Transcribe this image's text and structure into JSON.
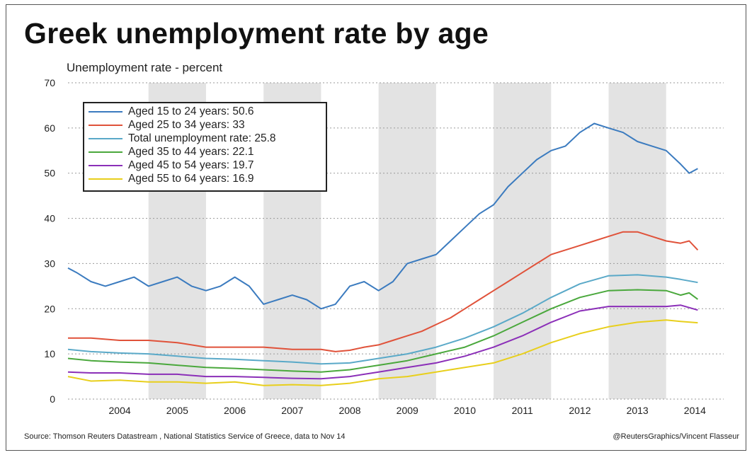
{
  "title": "Greek unemployment rate by age",
  "y_axis_label": "Unemployment rate - percent",
  "footer": {
    "source": "Source: Thomson Reuters Datastream , National Statistics Service of Greece, data to Nov 14",
    "credit": "@ReutersGraphics/Vincent Flasseur"
  },
  "legend": [
    {
      "label": "Aged 15 to 24 years: 50.6",
      "color": "#3b7bbf"
    },
    {
      "label": "Aged 25 to 34 years: 33",
      "color": "#e0523a"
    },
    {
      "label": "Total unemployment rate: 25.8",
      "color": "#5aa9c8"
    },
    {
      "label": "Aged 35 to 44 years: 22.1",
      "color": "#4aa83c"
    },
    {
      "label": "Aged 45 to 54 years: 19.7",
      "color": "#8b2fb8"
    },
    {
      "label": "Aged 55 to 64 years: 16.9",
      "color": "#e8cf1c"
    }
  ],
  "chart_data": {
    "type": "line",
    "title": "Greek unemployment rate by age",
    "ylabel": "Unemployment rate - percent",
    "xlabel": "",
    "xlim": [
      2003.6,
      2015.0
    ],
    "ylim": [
      0,
      70
    ],
    "yticks": [
      "0",
      "10",
      "20",
      "30",
      "40",
      "50",
      "60",
      "70"
    ],
    "xticks": [
      "2004",
      "2005",
      "2006",
      "2007",
      "2008",
      "2009",
      "2010",
      "2011",
      "2012",
      "2013",
      "2014"
    ],
    "grid": "horizontal dotted",
    "background_bands": "alternating year shading",
    "legend_position": "top-left",
    "series": [
      {
        "name": "Aged 15 to 24 years: 50.6",
        "color": "#3b7bbf",
        "x": [
          2003.6,
          2003.75,
          2004.0,
          2004.25,
          2004.5,
          2004.75,
          2005.0,
          2005.25,
          2005.5,
          2005.75,
          2006.0,
          2006.25,
          2006.5,
          2006.75,
          2007.0,
          2007.25,
          2007.5,
          2007.75,
          2008.0,
          2008.25,
          2008.5,
          2008.75,
          2009.0,
          2009.25,
          2009.5,
          2009.75,
          2010.0,
          2010.25,
          2010.5,
          2010.75,
          2011.0,
          2011.25,
          2011.5,
          2011.75,
          2012.0,
          2012.25,
          2012.5,
          2012.75,
          2013.0,
          2013.25,
          2013.5,
          2013.75,
          2014.0,
          2014.25,
          2014.4,
          2014.55
        ],
        "y": [
          29,
          28,
          26,
          25,
          26,
          27,
          25,
          26,
          27,
          25,
          24,
          25,
          27,
          25,
          21,
          22,
          23,
          22,
          20,
          21,
          25,
          26,
          24,
          26,
          30,
          31,
          32,
          35,
          38,
          41,
          43,
          47,
          50,
          53,
          55,
          56,
          59,
          61,
          60,
          59,
          57,
          56,
          55,
          52,
          50,
          51
        ]
      },
      {
        "name": "Aged 25 to 34 years: 33",
        "color": "#e0523a",
        "x": [
          2003.6,
          2004.0,
          2004.5,
          2005.0,
          2005.5,
          2006.0,
          2006.5,
          2007.0,
          2007.5,
          2008.0,
          2008.25,
          2008.5,
          2008.75,
          2009.0,
          2009.25,
          2009.5,
          2009.75,
          2010.0,
          2010.25,
          2010.5,
          2010.75,
          2011.0,
          2011.25,
          2011.5,
          2011.75,
          2012.0,
          2012.25,
          2012.5,
          2012.75,
          2013.0,
          2013.25,
          2013.5,
          2013.75,
          2014.0,
          2014.25,
          2014.4,
          2014.55
        ],
        "y": [
          13.5,
          13.5,
          13,
          13,
          12.5,
          11.5,
          11.5,
          11.5,
          11,
          11,
          10.5,
          10.8,
          11.5,
          12,
          13,
          14,
          15,
          16.5,
          18,
          20,
          22,
          24,
          26,
          28,
          30,
          32,
          33,
          34,
          35,
          36,
          37,
          37,
          36,
          35,
          34.5,
          35,
          33
        ]
      },
      {
        "name": "Total unemployment rate: 25.8",
        "color": "#5aa9c8",
        "x": [
          2003.6,
          2004.0,
          2004.5,
          2005.0,
          2005.5,
          2006.0,
          2006.5,
          2007.0,
          2007.5,
          2008.0,
          2008.5,
          2009.0,
          2009.5,
          2010.0,
          2010.5,
          2011.0,
          2011.5,
          2012.0,
          2012.5,
          2013.0,
          2013.5,
          2014.0,
          2014.25,
          2014.55
        ],
        "y": [
          11,
          10.5,
          10.2,
          10,
          9.5,
          9,
          8.8,
          8.5,
          8.2,
          7.8,
          8,
          9,
          10,
          11.5,
          13.5,
          16,
          19,
          22.5,
          25.5,
          27.3,
          27.5,
          27,
          26.5,
          25.8
        ]
      },
      {
        "name": "Aged 35 to 44 years: 22.1",
        "color": "#4aa83c",
        "x": [
          2003.6,
          2004.0,
          2004.5,
          2005.0,
          2005.5,
          2006.0,
          2006.5,
          2007.0,
          2007.5,
          2008.0,
          2008.5,
          2009.0,
          2009.5,
          2010.0,
          2010.5,
          2011.0,
          2011.5,
          2012.0,
          2012.5,
          2013.0,
          2013.5,
          2014.0,
          2014.25,
          2014.4,
          2014.55
        ],
        "y": [
          9,
          8.5,
          8.2,
          8,
          7.5,
          7,
          6.8,
          6.5,
          6.2,
          6,
          6.5,
          7.5,
          8.5,
          10,
          11.5,
          14,
          17,
          20,
          22.5,
          24,
          24.2,
          24,
          23,
          23.5,
          22.1
        ]
      },
      {
        "name": "Aged 45 to 54 years: 19.7",
        "color": "#8b2fb8",
        "x": [
          2003.6,
          2004.0,
          2004.5,
          2005.0,
          2005.5,
          2006.0,
          2006.5,
          2007.0,
          2007.5,
          2008.0,
          2008.5,
          2009.0,
          2009.5,
          2010.0,
          2010.5,
          2011.0,
          2011.5,
          2012.0,
          2012.5,
          2013.0,
          2013.5,
          2014.0,
          2014.25,
          2014.55
        ],
        "y": [
          6,
          5.8,
          5.8,
          5.5,
          5.5,
          5,
          5,
          4.8,
          4.6,
          4.5,
          5,
          6,
          7,
          8,
          9.5,
          11.5,
          14,
          17,
          19.5,
          20.5,
          20.5,
          20.5,
          20.8,
          19.7
        ]
      },
      {
        "name": "Aged 55 to 64 years: 16.9",
        "color": "#e8cf1c",
        "x": [
          2003.6,
          2004.0,
          2004.5,
          2005.0,
          2005.5,
          2006.0,
          2006.5,
          2007.0,
          2007.5,
          2008.0,
          2008.5,
          2009.0,
          2009.5,
          2010.0,
          2010.5,
          2011.0,
          2011.5,
          2012.0,
          2012.5,
          2013.0,
          2013.5,
          2014.0,
          2014.25,
          2014.55
        ],
        "y": [
          5,
          4,
          4.2,
          3.8,
          3.8,
          3.5,
          3.8,
          3,
          3.2,
          3,
          3.5,
          4.5,
          5,
          6,
          7,
          8,
          10,
          12.5,
          14.5,
          16,
          17,
          17.5,
          17.2,
          16.9
        ]
      }
    ]
  }
}
